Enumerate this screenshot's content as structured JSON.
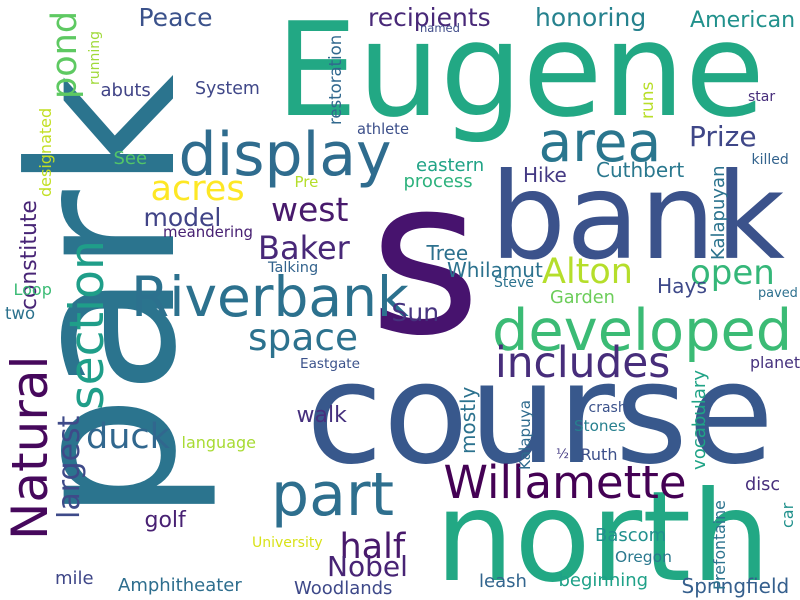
{
  "words": [
    {
      "text": "s",
      "color": "#47136e",
      "rotate": 0
    },
    {
      "text": "park",
      "color": "#2b748e",
      "rotate": -90
    },
    {
      "text": "Eugene",
      "color": "#22a884",
      "rotate": 0
    },
    {
      "text": "course",
      "color": "#38588c",
      "rotate": 0
    },
    {
      "text": "north",
      "color": "#22a884",
      "rotate": 0
    },
    {
      "text": "bank",
      "color": "#3b528b",
      "rotate": 0
    },
    {
      "text": "Riverbank",
      "color": "#2c718e",
      "rotate": 0
    },
    {
      "text": "developed",
      "color": "#3bbb75",
      "rotate": 0
    },
    {
      "text": "Natural",
      "color": "#46085c",
      "rotate": -90
    },
    {
      "text": "section",
      "color": "#1f9e89",
      "rotate": -90
    },
    {
      "text": "area",
      "color": "#2a768e",
      "rotate": 0
    },
    {
      "text": "display",
      "color": "#2f6c8e",
      "rotate": 0
    },
    {
      "text": "part",
      "color": "#2e6f8e",
      "rotate": 0
    },
    {
      "text": "Willamette",
      "color": "#440154",
      "rotate": 0
    },
    {
      "text": "constitute",
      "color": "#482576",
      "rotate": -90
    },
    {
      "text": "includes",
      "color": "#472d7b",
      "rotate": 0
    },
    {
      "text": "largest",
      "color": "#3e4a89",
      "rotate": -90
    },
    {
      "text": "Alton",
      "color": "#b5de2b",
      "rotate": 0
    },
    {
      "text": "acres",
      "color": "#fde725",
      "rotate": 0
    },
    {
      "text": "space",
      "color": "#2c728e",
      "rotate": 0
    },
    {
      "text": "open",
      "color": "#35b779",
      "rotate": 0
    },
    {
      "text": "Baker",
      "color": "#482878",
      "rotate": 0
    },
    {
      "text": "west",
      "color": "#481a6c",
      "rotate": 0
    },
    {
      "text": "half",
      "color": "#48196b",
      "rotate": 0
    },
    {
      "text": "duck",
      "color": "#31678e",
      "rotate": 0
    },
    {
      "text": "pond",
      "color": "#5ec962",
      "rotate": -90
    },
    {
      "text": "Nobel",
      "color": "#482475",
      "rotate": 0
    },
    {
      "text": "Prize",
      "color": "#3f4788",
      "rotate": 0
    },
    {
      "text": "model",
      "color": "#414487",
      "rotate": 0
    },
    {
      "text": "Peace",
      "color": "#3b528b",
      "rotate": 0
    },
    {
      "text": "recipients",
      "color": "#482878",
      "rotate": 0
    },
    {
      "text": "honoring",
      "color": "#26828e",
      "rotate": 0
    },
    {
      "text": "American",
      "color": "#21918c",
      "rotate": 0
    },
    {
      "text": "Sun",
      "color": "#46337f",
      "rotate": 0
    },
    {
      "text": "golf",
      "color": "#482173",
      "rotate": 0
    },
    {
      "text": "walk",
      "color": "#46307e",
      "rotate": 0
    },
    {
      "text": "planet",
      "color": "#46327e",
      "rotate": 0
    },
    {
      "text": "Hays",
      "color": "#3e4989",
      "rotate": 0
    },
    {
      "text": "Garden",
      "color": "#6ccd5a",
      "rotate": 0
    },
    {
      "text": "Tree",
      "color": "#2d718e",
      "rotate": 0
    },
    {
      "text": "Whilamut",
      "color": "#2c728e",
      "rotate": 0
    },
    {
      "text": "Cuthbert",
      "color": "#2a788e",
      "rotate": 0
    },
    {
      "text": "Hike",
      "color": "#443983",
      "rotate": 0
    },
    {
      "text": "process",
      "color": "#2db27d",
      "rotate": 0
    },
    {
      "text": "eastern",
      "color": "#20a386",
      "rotate": 0
    },
    {
      "text": "System",
      "color": "#3f4788",
      "rotate": 0
    },
    {
      "text": "abuts",
      "color": "#414487",
      "rotate": 0
    },
    {
      "text": "See",
      "color": "#52c569",
      "rotate": 0
    },
    {
      "text": "Loop",
      "color": "#3bbb75",
      "rotate": 0
    },
    {
      "text": "two",
      "color": "#2c728e",
      "rotate": 0
    },
    {
      "text": "mile",
      "color": "#3f4788",
      "rotate": 0
    },
    {
      "text": "Amphitheater",
      "color": "#2e6e8e",
      "rotate": 0
    },
    {
      "text": "Woodlands",
      "color": "#3e4989",
      "rotate": 0
    },
    {
      "text": "leash",
      "color": "#32658e",
      "rotate": 0
    },
    {
      "text": "beginning",
      "color": "#1fa188",
      "rotate": 0
    },
    {
      "text": "Springfield",
      "color": "#355f8d",
      "rotate": 0
    },
    {
      "text": "disc",
      "color": "#472f7d",
      "rotate": 0
    },
    {
      "text": "Bascom",
      "color": "#21908d",
      "rotate": 0
    },
    {
      "text": "Oregon",
      "color": "#2a788e",
      "rotate": 0
    },
    {
      "text": "Stones",
      "color": "#27808e",
      "rotate": 0
    },
    {
      "text": "Ruth",
      "color": "#3c4f8a",
      "rotate": 0
    },
    {
      "text": "½",
      "color": "#443a83",
      "rotate": 0
    },
    {
      "text": "Eastgate",
      "color": "#3b528b",
      "rotate": 0
    },
    {
      "text": "Talking",
      "color": "#33638d",
      "rotate": 0
    },
    {
      "text": "meandering",
      "color": "#482173",
      "rotate": 0
    },
    {
      "text": "language",
      "color": "#a8db34",
      "rotate": 0
    },
    {
      "text": "University",
      "color": "#d8e219",
      "rotate": 0
    },
    {
      "text": "athlete",
      "color": "#3c4f8a",
      "rotate": 0
    },
    {
      "text": "Pre",
      "color": "#b5de2b",
      "rotate": 0
    },
    {
      "text": "Steve",
      "color": "#2c728e",
      "rotate": 0
    },
    {
      "text": "crash",
      "color": "#3b528b",
      "rotate": 0
    },
    {
      "text": "paved",
      "color": "#2d708e",
      "rotate": 0
    },
    {
      "text": "killed",
      "color": "#33638d",
      "rotate": 0
    },
    {
      "text": "star",
      "color": "#472d7b",
      "rotate": 0
    },
    {
      "text": "named",
      "color": "#3e4a89",
      "rotate": 0
    },
    {
      "text": "restoration",
      "color": "#31688e",
      "rotate": -90
    },
    {
      "text": "runs",
      "color": "#b8de29",
      "rotate": -90
    },
    {
      "text": "Kalapuyan",
      "color": "#2c738e",
      "rotate": -90
    },
    {
      "text": "Kalapuya",
      "color": "#2f6b8e",
      "rotate": -90
    },
    {
      "text": "vocabulary",
      "color": "#20a386",
      "rotate": -90
    },
    {
      "text": "mostly",
      "color": "#2c728e",
      "rotate": -90
    },
    {
      "text": "Prefontaine",
      "color": "#2c738e",
      "rotate": -90
    },
    {
      "text": "car",
      "color": "#21918c",
      "rotate": -90
    },
    {
      "text": "designated",
      "color": "#c2df23",
      "rotate": -90
    },
    {
      "text": "running",
      "color": "#a0da39",
      "rotate": -90
    }
  ]
}
